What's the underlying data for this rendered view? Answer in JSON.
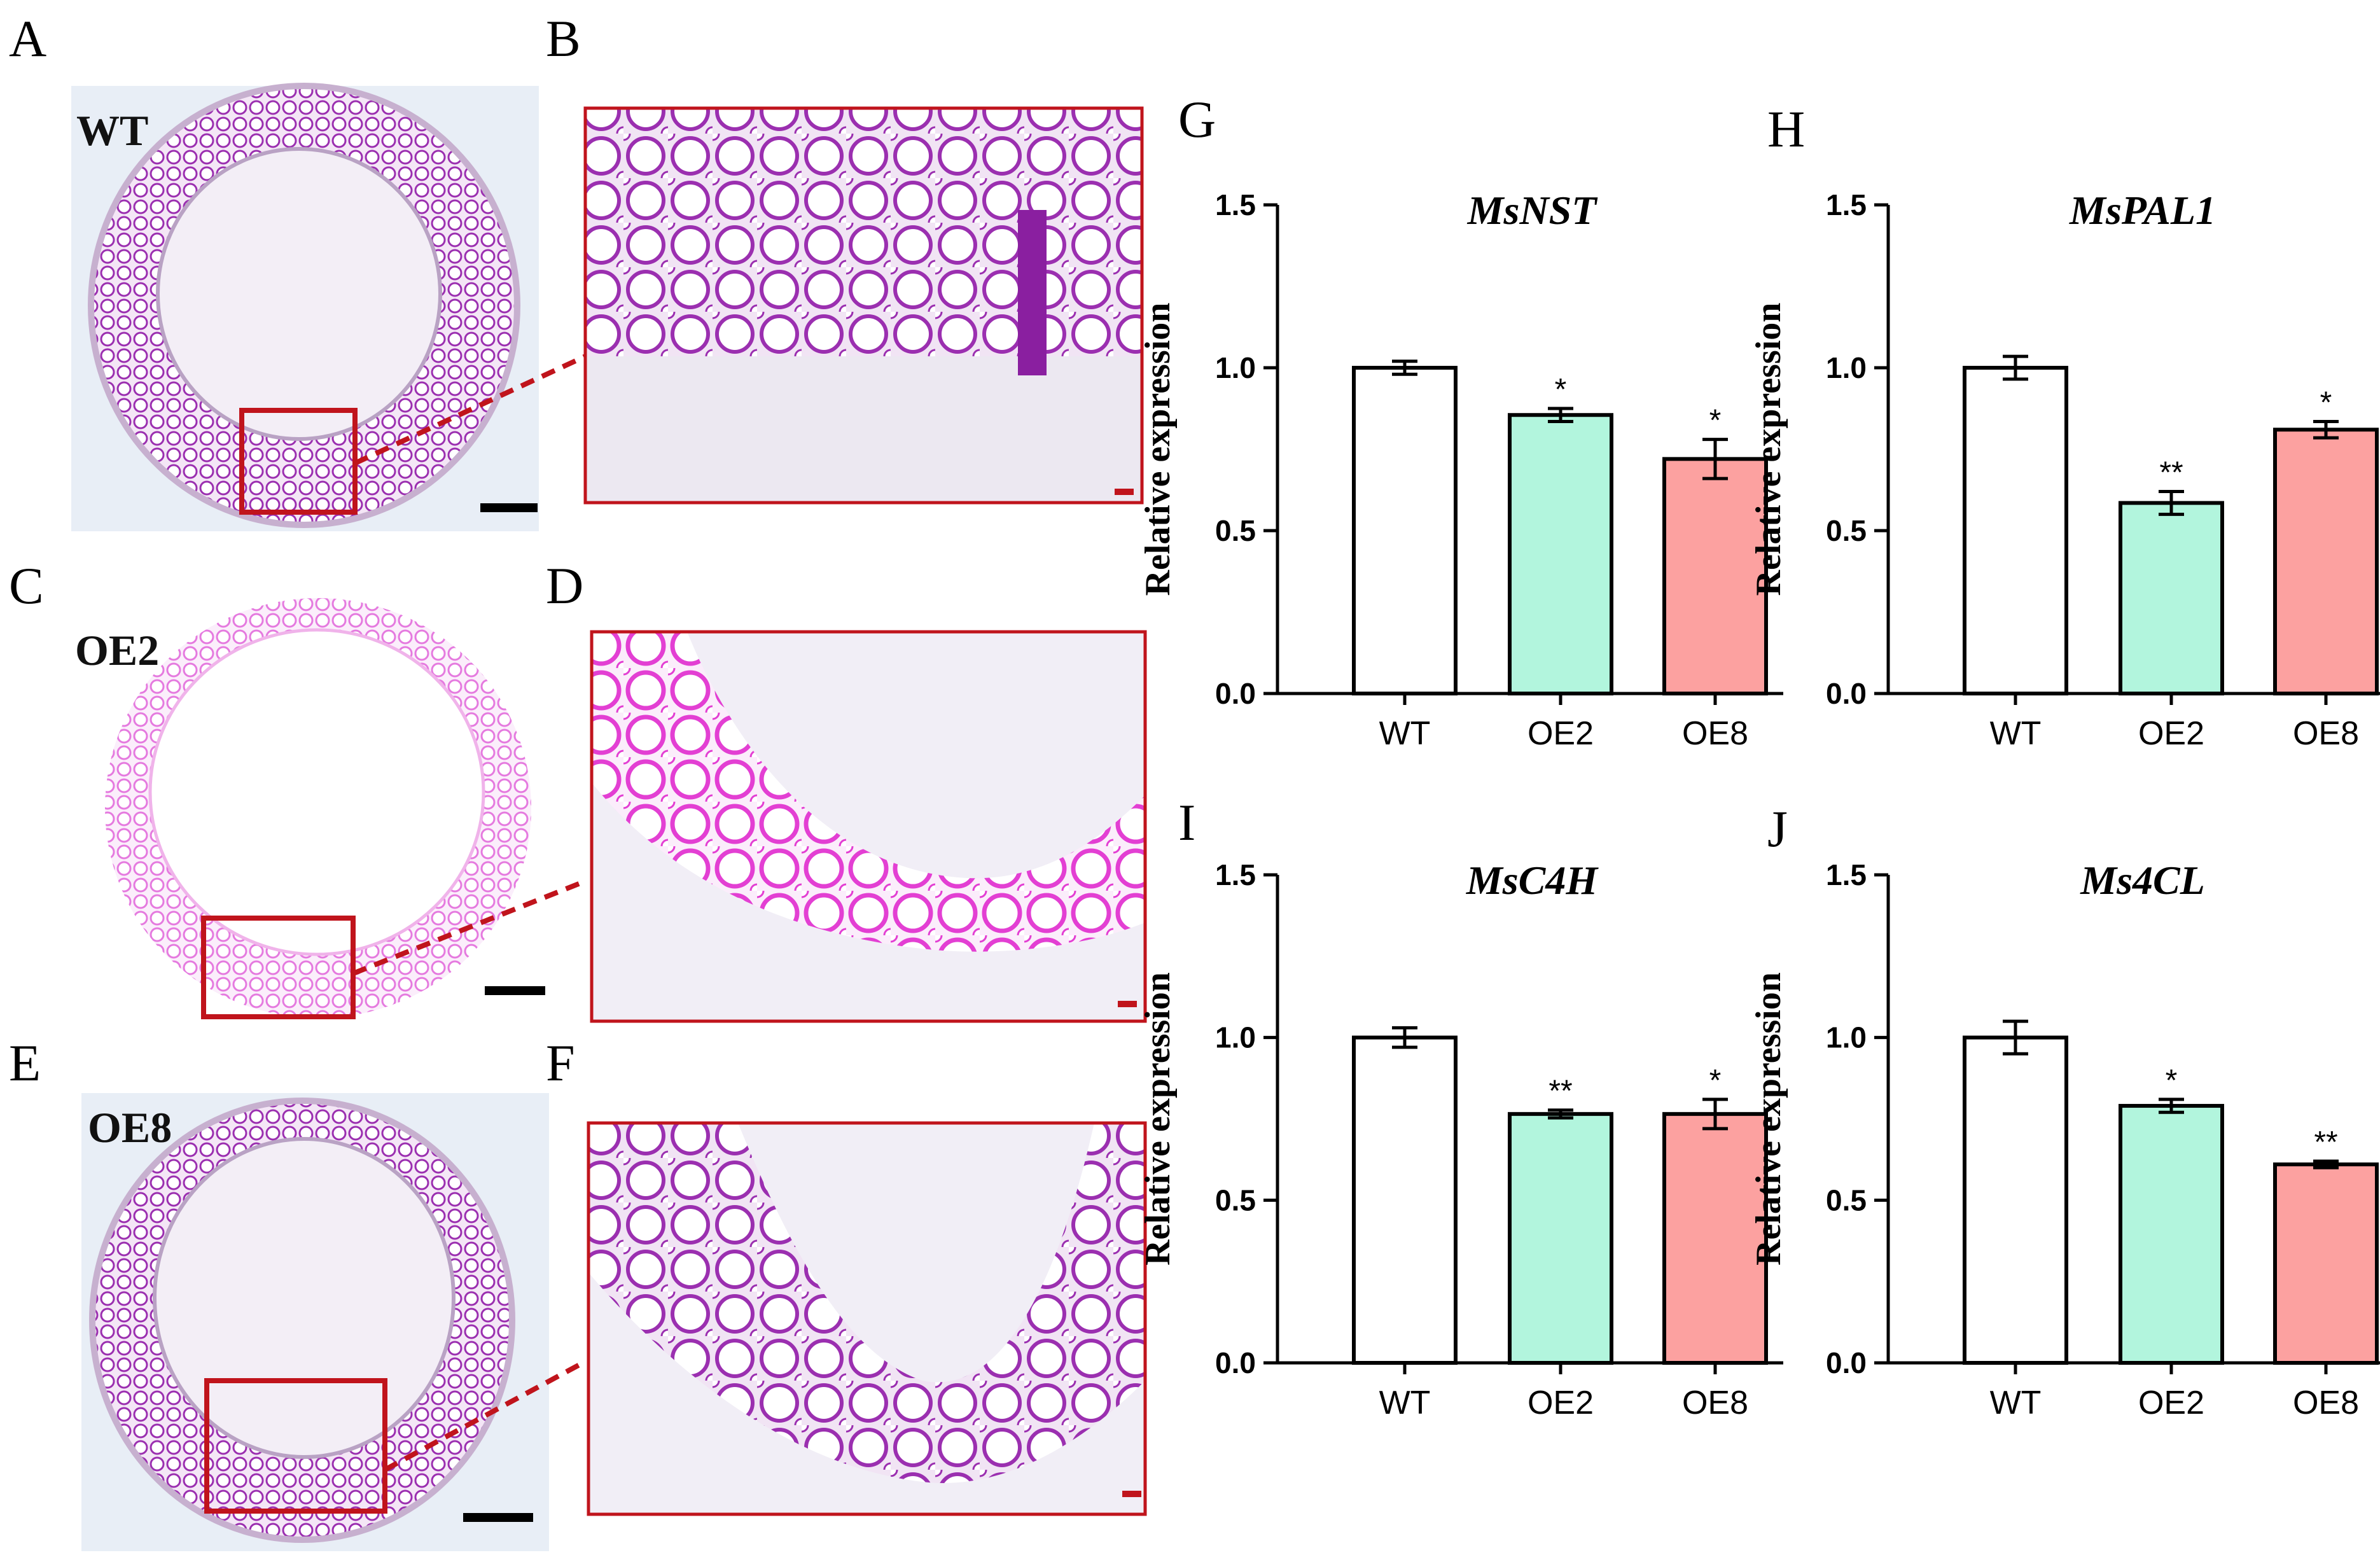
{
  "micrographs": [
    {
      "panel": "A",
      "genotype": "WT",
      "zoom_panel": "B"
    },
    {
      "panel": "C",
      "genotype": "OE2",
      "zoom_panel": "D"
    },
    {
      "panel": "E",
      "genotype": "OE8",
      "zoom_panel": "F"
    }
  ],
  "colors": {
    "stain_dark": "#9b2fb0",
    "stain_light": "#e57adf",
    "tissue_bg": "#f2ecf6",
    "photo_bg": "#e9eef5",
    "outline_red": "#c0141c",
    "bar_wt": "#ffffff",
    "bar_oe2": "#b2f5dd",
    "bar_oe8": "#fca1a0"
  },
  "chart_data": [
    {
      "panel": "G",
      "type": "bar",
      "title": "MsNST",
      "ylabel": "Relative expression",
      "ylim": [
        0,
        1.5
      ],
      "yticks": [
        "0.0",
        "0.5",
        "1.0",
        "1.5"
      ],
      "categories": [
        "WT",
        "OE2",
        "OE8"
      ],
      "values": [
        1.0,
        0.855,
        0.72
      ],
      "errors": [
        0.02,
        0.02,
        0.06
      ],
      "significance": [
        "",
        "*",
        "*"
      ]
    },
    {
      "panel": "H",
      "type": "bar",
      "title": "MsPAL1",
      "ylabel": "Relative expression",
      "ylim": [
        0,
        1.5
      ],
      "yticks": [
        "0.0",
        "0.5",
        "1.0",
        "1.5"
      ],
      "categories": [
        "WT",
        "OE2",
        "OE8"
      ],
      "values": [
        1.0,
        0.585,
        0.81
      ],
      "errors": [
        0.035,
        0.035,
        0.025
      ],
      "significance": [
        "",
        "**",
        "*"
      ]
    },
    {
      "panel": "I",
      "type": "bar",
      "title": "MsC4H",
      "ylabel": "Relative expression",
      "ylim": [
        0,
        1.5
      ],
      "yticks": [
        "0.0",
        "0.5",
        "1.0",
        "1.5"
      ],
      "categories": [
        "WT",
        "OE2",
        "OE8"
      ],
      "values": [
        1.0,
        0.765,
        0.765
      ],
      "errors": [
        0.03,
        0.012,
        0.045
      ],
      "significance": [
        "",
        "**",
        "*"
      ]
    },
    {
      "panel": "J",
      "type": "bar",
      "title": "Ms4CL",
      "ylabel": "Relative expression",
      "ylim": [
        0,
        1.5
      ],
      "yticks": [
        "0.0",
        "0.5",
        "1.0",
        "1.5"
      ],
      "categories": [
        "WT",
        "OE2",
        "OE8"
      ],
      "values": [
        1.0,
        0.79,
        0.61
      ],
      "errors": [
        0.05,
        0.02,
        0.01
      ],
      "significance": [
        "",
        "*",
        "**"
      ]
    }
  ]
}
